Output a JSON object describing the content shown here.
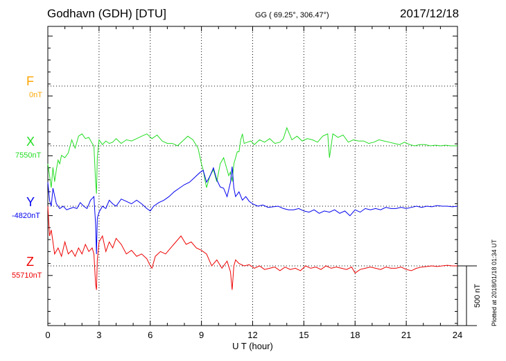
{
  "header": {
    "station": "Godhavn (GDH)  [DTU]",
    "coords": "GG ( 69.25°, 306.47°)",
    "date": "2017/12/18"
  },
  "plotted_note": "Plotted at 2018/01/18 01:34 UT",
  "chart_data": {
    "type": "line",
    "xlabel": "U T (hour)",
    "xlim": [
      0,
      24
    ],
    "xticks": [
      0,
      3,
      6,
      9,
      12,
      15,
      18,
      21,
      24
    ],
    "grid": true,
    "scale_bar": "500 nT",
    "series": [
      {
        "name": "F",
        "baseline": "0nT",
        "color": "#ffa500",
        "x": [],
        "y": []
      },
      {
        "name": "X",
        "baseline": "7550nT",
        "color": "#22dd22",
        "x": [
          0,
          0.1,
          0.2,
          0.3,
          0.4,
          0.5,
          0.6,
          0.7,
          0.8,
          1.0,
          1.2,
          1.4,
          1.6,
          1.8,
          2.0,
          2.2,
          2.4,
          2.6,
          2.7,
          2.8,
          2.85,
          2.9,
          3.0,
          3.2,
          3.4,
          3.6,
          3.8,
          4.0,
          4.3,
          4.6,
          4.9,
          5.2,
          5.5,
          5.8,
          6.1,
          6.4,
          6.7,
          7.0,
          7.3,
          7.6,
          7.9,
          8.2,
          8.5,
          8.8,
          9.0,
          9.1,
          9.2,
          9.3,
          9.5,
          9.7,
          9.9,
          10.1,
          10.3,
          10.5,
          10.6,
          10.7,
          10.8,
          10.9,
          11.0,
          11.1,
          11.2,
          11.3,
          11.4,
          11.5,
          11.7,
          11.9,
          12.1,
          12.4,
          12.7,
          13.0,
          13.3,
          13.6,
          13.8,
          14.0,
          14.3,
          14.6,
          14.9,
          15.2,
          15.5,
          15.8,
          16.1,
          16.4,
          16.5,
          16.7,
          17.0,
          17.3,
          17.6,
          17.9,
          18.2,
          18.5,
          18.8,
          19.1,
          19.4,
          19.7,
          20.0,
          20.3,
          20.6,
          20.9,
          21.2,
          21.5,
          21.8,
          22.1,
          22.4,
          22.7,
          23.0,
          23.3,
          23.6,
          24.0
        ],
        "y": [
          -150,
          -250,
          -350,
          -180,
          -300,
          -200,
          -120,
          -150,
          -80,
          -100,
          -60,
          50,
          -20,
          80,
          100,
          60,
          70,
          20,
          0,
          -300,
          -400,
          -100,
          50,
          10,
          40,
          20,
          30,
          60,
          20,
          50,
          40,
          60,
          80,
          100,
          60,
          90,
          40,
          20,
          20,
          0,
          40,
          80,
          50,
          -20,
          -150,
          -200,
          -280,
          -350,
          -250,
          -200,
          -300,
          -150,
          -100,
          -200,
          -250,
          -220,
          -300,
          -150,
          -100,
          -50,
          -50,
          50,
          100,
          20,
          30,
          40,
          10,
          50,
          30,
          60,
          20,
          30,
          60,
          150,
          50,
          80,
          40,
          60,
          50,
          30,
          80,
          100,
          -100,
          100,
          70,
          90,
          30,
          50,
          40,
          40,
          20,
          30,
          50,
          40,
          30,
          20,
          10,
          30,
          10,
          0,
          10,
          10,
          0,
          5,
          0,
          5,
          0,
          0
        ]
      },
      {
        "name": "Y",
        "baseline": "-4820nT",
        "color": "#0000ee",
        "x": [
          0,
          0.1,
          0.2,
          0.3,
          0.5,
          0.7,
          0.9,
          1.1,
          1.3,
          1.5,
          1.7,
          1.9,
          2.1,
          2.3,
          2.5,
          2.7,
          2.8,
          2.85,
          2.9,
          3.0,
          3.2,
          3.4,
          3.6,
          3.8,
          4.0,
          4.3,
          4.6,
          4.9,
          5.2,
          5.5,
          5.8,
          6.0,
          6.2,
          6.5,
          6.8,
          7.1,
          7.4,
          7.7,
          8.0,
          8.3,
          8.6,
          8.9,
          9.1,
          9.3,
          9.5,
          9.7,
          9.9,
          10.1,
          10.3,
          10.5,
          10.7,
          10.8,
          10.9,
          11.0,
          11.2,
          11.4,
          11.6,
          11.8,
          12.0,
          12.3,
          12.6,
          12.9,
          13.2,
          13.5,
          13.8,
          14.1,
          14.4,
          14.7,
          15.0,
          15.3,
          15.6,
          15.9,
          16.2,
          16.5,
          16.8,
          17.1,
          17.4,
          17.7,
          18.0,
          18.3,
          18.6,
          18.9,
          19.2,
          19.5,
          19.8,
          20.1,
          20.4,
          20.7,
          21.0,
          21.3,
          21.6,
          21.9,
          22.2,
          22.5,
          22.8,
          23.1,
          23.4,
          23.7,
          24.0
        ],
        "y": [
          200,
          50,
          0,
          150,
          20,
          -20,
          0,
          -30,
          -20,
          -10,
          -20,
          30,
          0,
          -20,
          50,
          80,
          -150,
          -400,
          -100,
          -50,
          0,
          -20,
          50,
          20,
          0,
          60,
          40,
          20,
          50,
          20,
          -20,
          -40,
          0,
          30,
          50,
          80,
          120,
          150,
          180,
          200,
          240,
          280,
          300,
          200,
          250,
          320,
          220,
          160,
          150,
          80,
          200,
          330,
          150,
          80,
          120,
          50,
          80,
          40,
          20,
          0,
          10,
          -10,
          -5,
          0,
          -20,
          -30,
          -30,
          -20,
          -40,
          -50,
          -30,
          -60,
          -40,
          -50,
          -30,
          -60,
          -40,
          -80,
          -30,
          -50,
          -20,
          -30,
          -20,
          -30,
          -10,
          -20,
          -20,
          -10,
          -20,
          -10,
          0,
          -10,
          0,
          -5,
          5,
          0,
          0,
          -5,
          0
        ]
      },
      {
        "name": "Z",
        "baseline": "55710nT",
        "color": "#ee0000",
        "x": [
          0,
          0.1,
          0.2,
          0.3,
          0.4,
          0.6,
          0.8,
          1.0,
          1.2,
          1.4,
          1.6,
          1.8,
          2.0,
          2.2,
          2.4,
          2.6,
          2.7,
          2.8,
          2.85,
          2.9,
          3.0,
          3.2,
          3.4,
          3.6,
          3.8,
          4.0,
          4.3,
          4.6,
          4.9,
          5.2,
          5.5,
          5.8,
          6.0,
          6.1,
          6.3,
          6.6,
          6.9,
          7.2,
          7.5,
          7.8,
          8.1,
          8.4,
          8.7,
          9.0,
          9.3,
          9.6,
          9.9,
          10.2,
          10.5,
          10.7,
          10.8,
          10.9,
          11.0,
          11.2,
          11.5,
          11.8,
          12.1,
          12.4,
          12.7,
          13.0,
          13.3,
          13.6,
          13.9,
          14.2,
          14.5,
          14.8,
          15.1,
          15.4,
          15.7,
          16.0,
          16.3,
          16.6,
          16.9,
          17.2,
          17.5,
          17.8,
          18.0,
          18.3,
          18.6,
          18.9,
          19.2,
          19.5,
          19.8,
          20.1,
          20.4,
          20.7,
          21.0,
          21.3,
          21.6,
          21.9,
          22.2,
          22.5,
          22.8,
          23.1,
          23.4,
          23.7,
          24.0
        ],
        "y": [
          500,
          250,
          300,
          200,
          100,
          150,
          80,
          200,
          100,
          130,
          80,
          150,
          100,
          180,
          120,
          150,
          100,
          -150,
          -200,
          50,
          200,
          250,
          120,
          200,
          150,
          230,
          180,
          100,
          130,
          80,
          100,
          60,
          0,
          -20,
          80,
          120,
          100,
          150,
          200,
          250,
          180,
          200,
          150,
          130,
          100,
          0,
          50,
          -20,
          40,
          -50,
          -200,
          0,
          50,
          20,
          0,
          10,
          -20,
          0,
          -30,
          -20,
          -10,
          -40,
          -10,
          -30,
          -20,
          -40,
          0,
          -20,
          -10,
          -30,
          0,
          -20,
          -10,
          -20,
          -30,
          -10,
          -60,
          -30,
          -20,
          -10,
          -20,
          -30,
          -10,
          -20,
          -20,
          -10,
          -30,
          -40,
          -20,
          -10,
          -5,
          0,
          -5,
          0,
          5,
          0,
          0
        ]
      }
    ]
  }
}
